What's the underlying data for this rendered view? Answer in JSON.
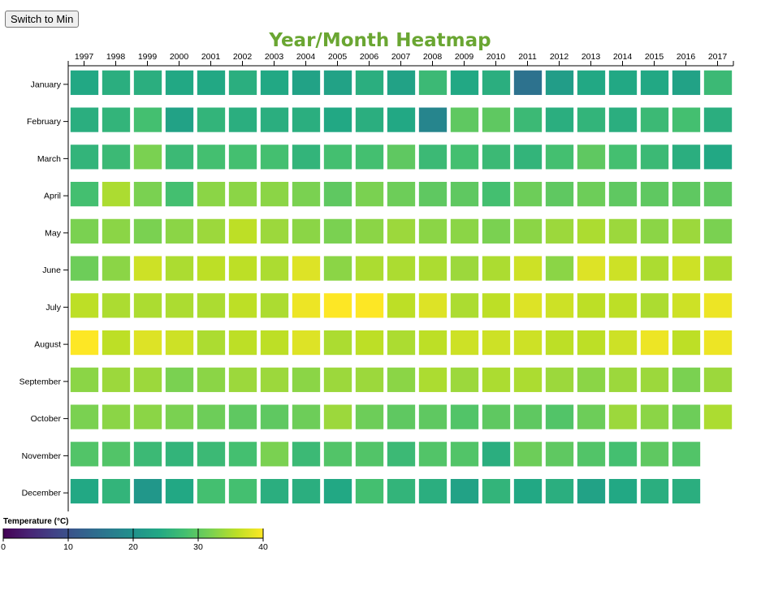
{
  "toolbar": {
    "toggle_label": "Switch to Min"
  },
  "colors": {
    "title": "#6aa632",
    "axis": "#000000"
  },
  "chart_data": {
    "type": "heatmap",
    "title": "Year/Month Heatmap",
    "xlabel": "",
    "ylabel": "",
    "colorscale": "viridis",
    "x": [
      "1997",
      "1998",
      "1999",
      "2000",
      "2001",
      "2002",
      "2003",
      "2004",
      "2005",
      "2006",
      "2007",
      "2008",
      "2009",
      "2010",
      "2011",
      "2012",
      "2013",
      "2014",
      "2015",
      "2016",
      "2017"
    ],
    "y": [
      "January",
      "February",
      "March",
      "April",
      "May",
      "June",
      "July",
      "August",
      "September",
      "October",
      "November",
      "December"
    ],
    "values": [
      [
        24,
        25,
        25,
        24,
        24,
        25,
        24,
        23,
        23,
        25,
        23,
        27,
        24,
        25,
        15,
        22,
        24,
        24,
        24,
        23,
        27
      ],
      [
        25,
        26,
        28,
        23,
        26,
        25,
        25,
        25,
        24,
        25,
        24,
        18,
        30,
        30,
        27,
        25,
        26,
        25,
        27,
        28,
        25
      ],
      [
        26,
        27,
        32,
        27,
        28,
        28,
        28,
        26,
        28,
        28,
        30,
        27,
        28,
        27,
        26,
        28,
        30,
        28,
        27,
        25,
        24
      ],
      [
        28,
        35,
        32,
        28,
        33,
        33,
        33,
        32,
        30,
        32,
        31,
        30,
        30,
        28,
        31,
        30,
        31,
        30,
        30,
        30,
        30
      ],
      [
        32,
        33,
        32,
        33,
        34,
        36,
        34,
        33,
        32,
        33,
        34,
        33,
        33,
        32,
        33,
        34,
        35,
        34,
        33,
        34,
        32
      ],
      [
        31,
        33,
        37,
        35,
        36,
        36,
        35,
        38,
        33,
        35,
        35,
        35,
        34,
        35,
        37,
        33,
        38,
        37,
        35,
        37,
        35
      ],
      [
        36,
        35,
        35,
        35,
        35,
        36,
        35,
        39,
        41,
        40,
        36,
        38,
        35,
        36,
        38,
        37,
        36,
        36,
        35,
        37,
        39
      ],
      [
        40,
        36,
        38,
        37,
        35,
        36,
        36,
        38,
        35,
        36,
        35,
        36,
        37,
        37,
        37,
        36,
        36,
        37,
        39,
        36,
        39
      ],
      [
        33,
        34,
        34,
        32,
        33,
        34,
        34,
        33,
        34,
        34,
        33,
        35,
        34,
        35,
        35,
        34,
        33,
        34,
        34,
        32,
        34
      ],
      [
        32,
        33,
        33,
        32,
        31,
        30,
        30,
        31,
        34,
        31,
        30,
        30,
        29,
        30,
        30,
        29,
        31,
        34,
        33,
        31,
        35
      ],
      [
        29,
        29,
        27,
        26,
        27,
        28,
        32,
        27,
        29,
        29,
        27,
        29,
        29,
        25,
        31,
        30,
        29,
        28,
        30,
        29,
        null
      ],
      [
        24,
        26,
        21,
        24,
        28,
        28,
        25,
        25,
        24,
        28,
        26,
        25,
        23,
        26,
        24,
        25,
        23,
        24,
        25,
        25,
        null
      ]
    ],
    "legend": {
      "title": "Temperature (°C)",
      "ticks": [
        "0",
        "10",
        "20",
        "30",
        "40"
      ],
      "min": 0,
      "max": 40
    }
  }
}
